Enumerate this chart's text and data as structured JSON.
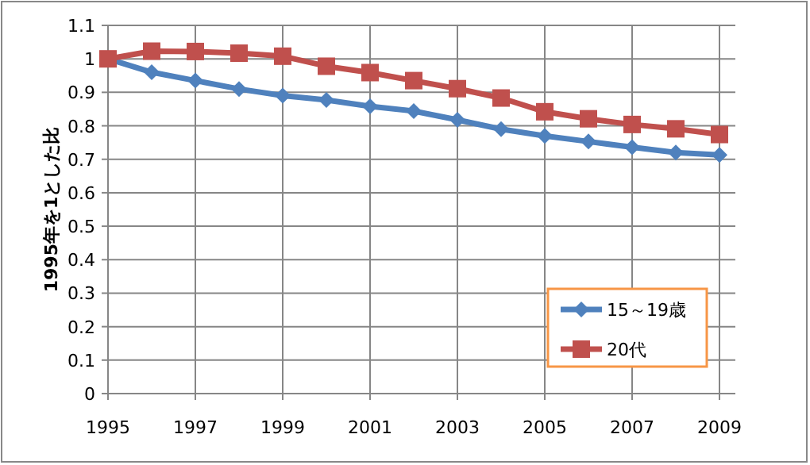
{
  "chart_data": {
    "type": "line",
    "ylabel": "1995年を1とした比",
    "x": [
      1995,
      1996,
      1997,
      1998,
      1999,
      2000,
      2001,
      2002,
      2003,
      2004,
      2005,
      2006,
      2007,
      2008,
      2009
    ],
    "series": [
      {
        "name": "15～19歳",
        "color": "#4f81bd",
        "marker": "diamond",
        "values": [
          1.0,
          0.96,
          0.935,
          0.91,
          0.89,
          0.877,
          0.858,
          0.844,
          0.818,
          0.79,
          0.77,
          0.753,
          0.736,
          0.72,
          0.713
        ]
      },
      {
        "name": "20代",
        "color": "#c0504d",
        "marker": "square",
        "values": [
          1.0,
          1.023,
          1.022,
          1.017,
          1.008,
          0.978,
          0.959,
          0.935,
          0.911,
          0.883,
          0.842,
          0.821,
          0.804,
          0.791,
          0.774
        ]
      }
    ],
    "xlim": [
      1995,
      2009
    ],
    "xticks": [
      1995,
      1997,
      1999,
      2001,
      2003,
      2005,
      2007,
      2009
    ],
    "ylim": [
      0,
      1.1
    ],
    "yticks": [
      0,
      {
        "value": 0.1,
        "label": "0.1"
      },
      {
        "value": 0.2,
        "label": "0.2"
      },
      {
        "value": 0.3,
        "label": "0.3"
      },
      {
        "value": 0.4,
        "label": "0.4"
      },
      {
        "value": 0.5,
        "label": "0.5"
      },
      {
        "value": 0.6,
        "label": "0.6"
      },
      {
        "value": 0.7,
        "label": "0.7"
      },
      {
        "value": 0.8,
        "label": "0.8"
      },
      {
        "value": 0.9,
        "label": "0.9"
      },
      1,
      {
        "value": 1.1,
        "label": "1.1"
      }
    ],
    "grid": true,
    "legend": "bottom right",
    "line_style": "solid"
  }
}
